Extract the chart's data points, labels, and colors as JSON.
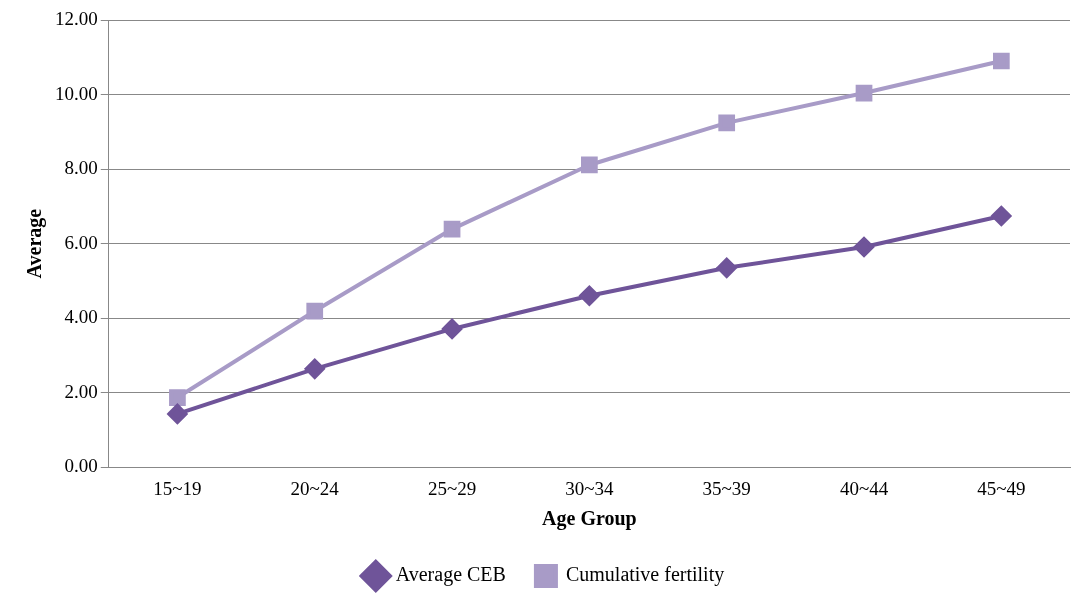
{
  "chart_data": {
    "type": "line",
    "xlabel": "Age Group",
    "ylabel": "Average",
    "categories": [
      "15~19",
      "20~24",
      "25~29",
      "30~34",
      "35~39",
      "40~44",
      "45~49"
    ],
    "series": [
      {
        "name": "Average CEB",
        "color": "#6f5499",
        "marker": "diamond",
        "values": [
          1.43,
          2.64,
          3.71,
          4.6,
          5.35,
          5.91,
          6.74
        ]
      },
      {
        "name": "Cumulative fertility",
        "color": "#a89bc7",
        "marker": "square",
        "values": [
          1.87,
          4.19,
          6.39,
          8.11,
          9.24,
          10.04,
          10.9
        ]
      }
    ],
    "ylim": [
      0,
      12
    ],
    "yticks": [
      {
        "value": 0,
        "label": "0.00"
      },
      {
        "value": 2,
        "label": "2.00"
      },
      {
        "value": 4,
        "label": "4.00"
      },
      {
        "value": 6,
        "label": "6.00"
      },
      {
        "value": 8,
        "label": "8.00"
      },
      {
        "value": 10,
        "label": "10.00"
      },
      {
        "value": 12,
        "label": "12.00"
      }
    ],
    "grid": "y",
    "legend": "bottom",
    "line_style": "solid"
  }
}
